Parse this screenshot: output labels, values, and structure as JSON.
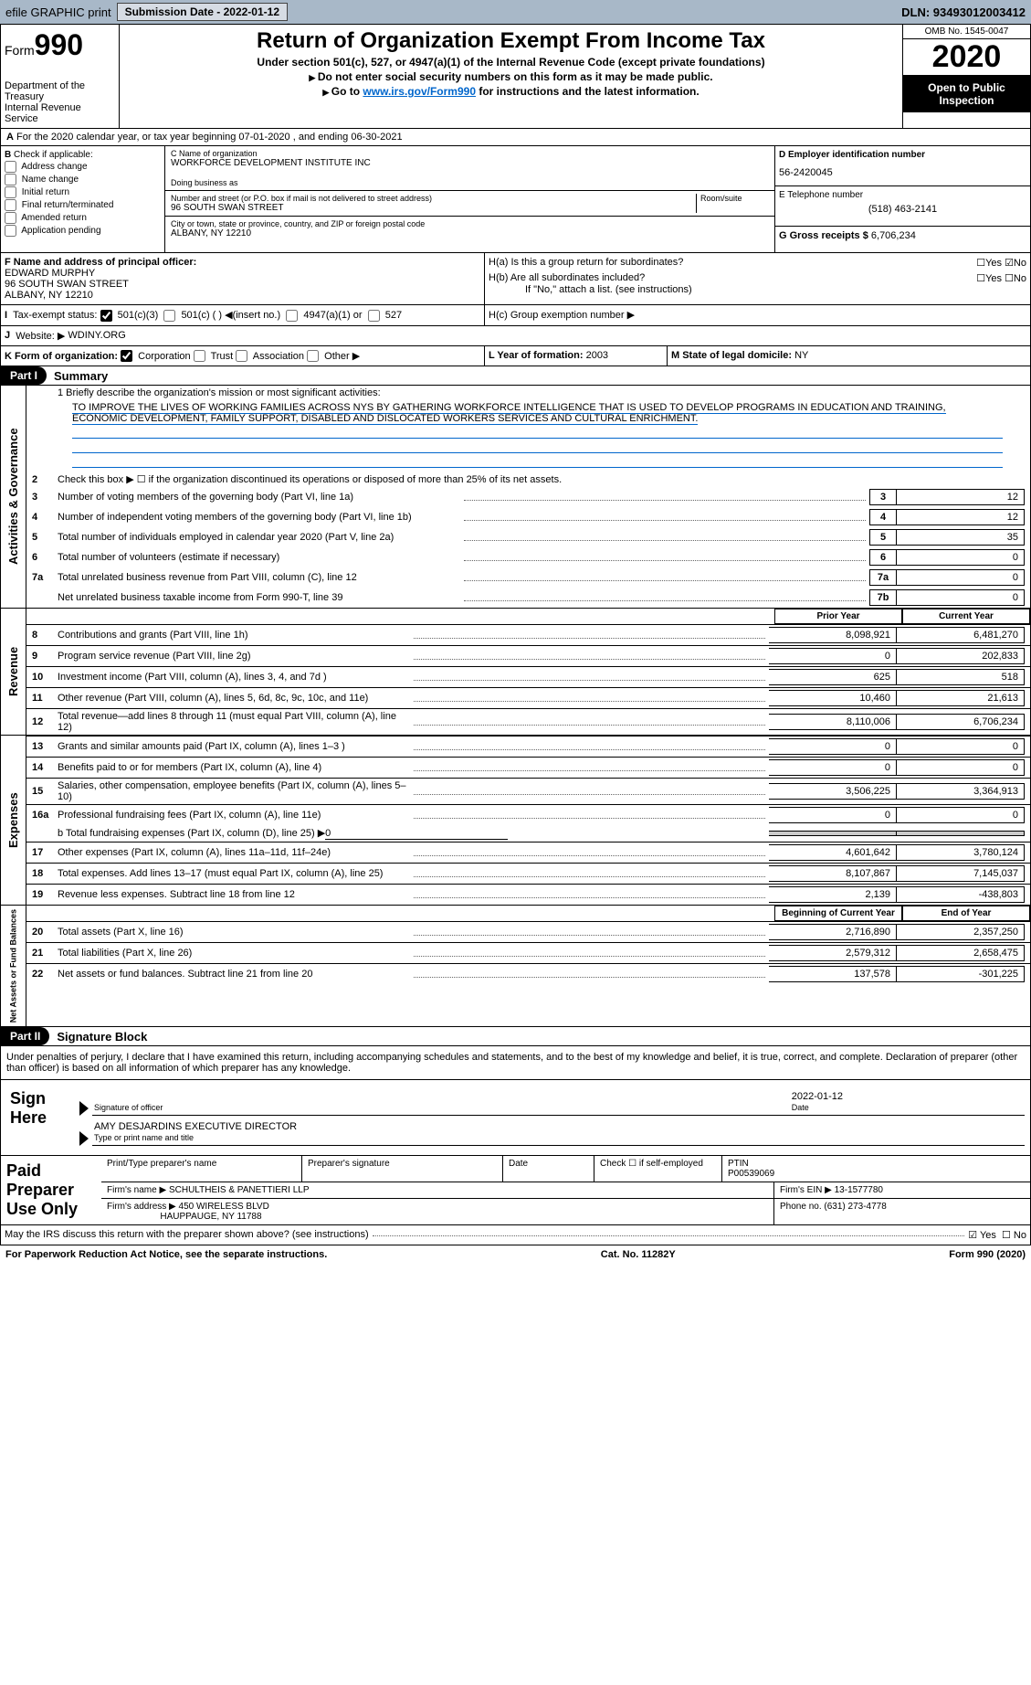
{
  "topbar": {
    "efile": "efile GRAPHIC print",
    "submit_btn": "Submission Date - 2022-01-12",
    "dln": "DLN: 93493012003412"
  },
  "header": {
    "form_label": "Form",
    "form_num": "990",
    "dept": "Department of the Treasury\nInternal Revenue Service",
    "title": "Return of Organization Exempt From Income Tax",
    "sub1": "Under section 501(c), 527, or 4947(a)(1) of the Internal Revenue Code (except private foundations)",
    "sub2": "Do not enter social security numbers on this form as it may be made public.",
    "sub3_pre": "Go to ",
    "sub3_link": "www.irs.gov/Form990",
    "sub3_post": " for instructions and the latest information.",
    "omb": "OMB No. 1545-0047",
    "year": "2020",
    "otp": "Open to Public Inspection"
  },
  "period": {
    "line": "For the 2020 calendar year, or tax year beginning 07-01-2020   , and ending 06-30-2021"
  },
  "checkB": {
    "title": "Check if applicable:",
    "items": [
      "Address change",
      "Name change",
      "Initial return",
      "Final return/terminated",
      "Amended return",
      "Application pending"
    ]
  },
  "boxC": {
    "c_label": "C Name of organization",
    "c_name": "WORKFORCE DEVELOPMENT INSTITUTE INC",
    "dba_label": "Doing business as",
    "dba": "",
    "street_label": "Number and street (or P.O. box if mail is not delivered to street address)",
    "room_label": "Room/suite",
    "street": "96 SOUTH SWAN STREET",
    "city_label": "City or town, state or province, country, and ZIP or foreign postal code",
    "city": "ALBANY, NY  12210"
  },
  "boxD": {
    "label": "D Employer identification number",
    "val": "56-2420045"
  },
  "boxE": {
    "label": "E Telephone number",
    "val": "(518) 463-2141"
  },
  "boxG": {
    "label": "G Gross receipts $",
    "val": "6,706,234"
  },
  "boxF": {
    "label": "F  Name and address of principal officer:",
    "name": "EDWARD MURPHY",
    "addr1": "96 SOUTH SWAN STREET",
    "addr2": "ALBANY, NY  12210"
  },
  "boxH": {
    "a_label": "H(a)  Is this a group return for subordinates?",
    "a_no_checked": true,
    "b_label": "H(b)  Are all subordinates included?",
    "note": "If \"No,\" attach a list. (see instructions)",
    "c_label": "H(c)  Group exemption number ▶"
  },
  "rowI": {
    "label": "Tax-exempt status:",
    "c3": "501(c)(3)",
    "c": "501(c) (  ) ◀(insert no.)",
    "a": "4947(a)(1) or",
    "five27": "527",
    "c3_checked": true
  },
  "rowJ": {
    "label": "Website: ▶",
    "val": "WDINY.ORG"
  },
  "rowK": {
    "label": "K Form of organization:",
    "opts": [
      "Corporation",
      "Trust",
      "Association",
      "Other ▶"
    ],
    "corp_checked": true
  },
  "rowL": {
    "label": "L Year of formation:",
    "val": "2003"
  },
  "rowM": {
    "label": "M State of legal domicile:",
    "val": "NY"
  },
  "part1": {
    "bar": "Part I",
    "title": "Summary"
  },
  "mission": {
    "q": "1  Briefly describe the organization's mission or most significant activities:",
    "text": "TO IMPROVE THE LIVES OF WORKING FAMILIES ACROSS NYS BY GATHERING WORKFORCE INTELLIGENCE THAT IS USED TO DEVELOP PROGRAMS IN EDUCATION AND TRAINING, ECONOMIC DEVELOPMENT, FAMILY SUPPORT, DISABLED AND DISLOCATED WORKERS SERVICES AND CULTURAL ENRICHMENT."
  },
  "gov": {
    "tab": "Activities & Governance",
    "l2": "Check this box ▶ ☐  if the organization discontinued its operations or disposed of more than 25% of its net assets.",
    "lines": [
      {
        "n": "3",
        "d": "Number of voting members of the governing body (Part VI, line 1a)",
        "box": "3",
        "v": "12"
      },
      {
        "n": "4",
        "d": "Number of independent voting members of the governing body (Part VI, line 1b)",
        "box": "4",
        "v": "12"
      },
      {
        "n": "5",
        "d": "Total number of individuals employed in calendar year 2020 (Part V, line 2a)",
        "box": "5",
        "v": "35"
      },
      {
        "n": "6",
        "d": "Total number of volunteers (estimate if necessary)",
        "box": "6",
        "v": "0"
      },
      {
        "n": "7a",
        "d": "Total unrelated business revenue from Part VIII, column (C), line 12",
        "box": "7a",
        "v": "0"
      },
      {
        "n": "",
        "d": "Net unrelated business taxable income from Form 990-T, line 39",
        "box": "7b",
        "v": "0"
      }
    ]
  },
  "colheads": {
    "prior": "Prior Year",
    "current": "Current Year"
  },
  "rev": {
    "tab": "Revenue",
    "lines": [
      {
        "n": "8",
        "d": "Contributions and grants (Part VIII, line 1h)",
        "p": "8,098,921",
        "c": "6,481,270"
      },
      {
        "n": "9",
        "d": "Program service revenue (Part VIII, line 2g)",
        "p": "0",
        "c": "202,833"
      },
      {
        "n": "10",
        "d": "Investment income (Part VIII, column (A), lines 3, 4, and 7d )",
        "p": "625",
        "c": "518"
      },
      {
        "n": "11",
        "d": "Other revenue (Part VIII, column (A), lines 5, 6d, 8c, 9c, 10c, and 11e)",
        "p": "10,460",
        "c": "21,613"
      },
      {
        "n": "12",
        "d": "Total revenue—add lines 8 through 11 (must equal Part VIII, column (A), line 12)",
        "p": "8,110,006",
        "c": "6,706,234"
      }
    ]
  },
  "exp": {
    "tab": "Expenses",
    "lines": [
      {
        "n": "13",
        "d": "Grants and similar amounts paid (Part IX, column (A), lines 1–3 )",
        "p": "0",
        "c": "0"
      },
      {
        "n": "14",
        "d": "Benefits paid to or for members (Part IX, column (A), line 4)",
        "p": "0",
        "c": "0"
      },
      {
        "n": "15",
        "d": "Salaries, other compensation, employee benefits (Part IX, column (A), lines 5–10)",
        "p": "3,506,225",
        "c": "3,364,913"
      },
      {
        "n": "16a",
        "d": "Professional fundraising fees (Part IX, column (A), line 11e)",
        "p": "0",
        "c": "0"
      }
    ],
    "l16b_pre": "b  Total fundraising expenses (Part IX, column (D), line 25) ▶",
    "l16b_val": "0",
    "lines2": [
      {
        "n": "17",
        "d": "Other expenses (Part IX, column (A), lines 11a–11d, 11f–24e)",
        "p": "4,601,642",
        "c": "3,780,124"
      },
      {
        "n": "18",
        "d": "Total expenses. Add lines 13–17 (must equal Part IX, column (A), line 25)",
        "p": "8,107,867",
        "c": "7,145,037"
      },
      {
        "n": "19",
        "d": "Revenue less expenses. Subtract line 18 from line 12",
        "p": "2,139",
        "c": "-438,803"
      }
    ]
  },
  "net": {
    "tab": "Net Assets or Fund Balances",
    "heads": {
      "begin": "Beginning of Current Year",
      "end": "End of Year"
    },
    "lines": [
      {
        "n": "20",
        "d": "Total assets (Part X, line 16)",
        "p": "2,716,890",
        "c": "2,357,250"
      },
      {
        "n": "21",
        "d": "Total liabilities (Part X, line 26)",
        "p": "2,579,312",
        "c": "2,658,475"
      },
      {
        "n": "22",
        "d": "Net assets or fund balances. Subtract line 21 from line 20",
        "p": "137,578",
        "c": "-301,225"
      }
    ]
  },
  "part2": {
    "bar": "Part II",
    "title": "Signature Block"
  },
  "penalty": "Under penalties of perjury, I declare that I have examined this return, including accompanying schedules and statements, and to the best of my knowledge and belief, it is true, correct, and complete. Declaration of preparer (other than officer) is based on all information of which preparer has any knowledge.",
  "sign": {
    "label": "Sign Here",
    "sig_label": "Signature of officer",
    "date": "2022-01-12",
    "date_label": "Date",
    "name": "AMY DESJARDINS EXECUTIVE DIRECTOR",
    "name_label": "Type or print name and title"
  },
  "paid": {
    "label": "Paid Preparer Use Only",
    "h_print": "Print/Type preparer's name",
    "h_sig": "Preparer's signature",
    "h_date": "Date",
    "h_check": "Check ☐ if self-employed",
    "h_ptin": "PTIN",
    "ptin": "P00539069",
    "firm_label": "Firm's name  ▶",
    "firm": "SCHULTHEIS & PANETTIERI LLP",
    "ein_label": "Firm's EIN ▶",
    "ein": "13-1577780",
    "addr_label": "Firm's address ▶",
    "addr1": "450 WIRELESS BLVD",
    "addr2": "HAUPPAUGE, NY  11788",
    "phone_label": "Phone no.",
    "phone": "(631) 273-4778"
  },
  "discuss": {
    "q": "May the IRS discuss this return with the preparer shown above? (see instructions)",
    "yes_checked": true
  },
  "footer": {
    "pra": "For Paperwork Reduction Act Notice, see the separate instructions.",
    "cat": "Cat. No. 11282Y",
    "form": "Form 990 (2020)"
  }
}
